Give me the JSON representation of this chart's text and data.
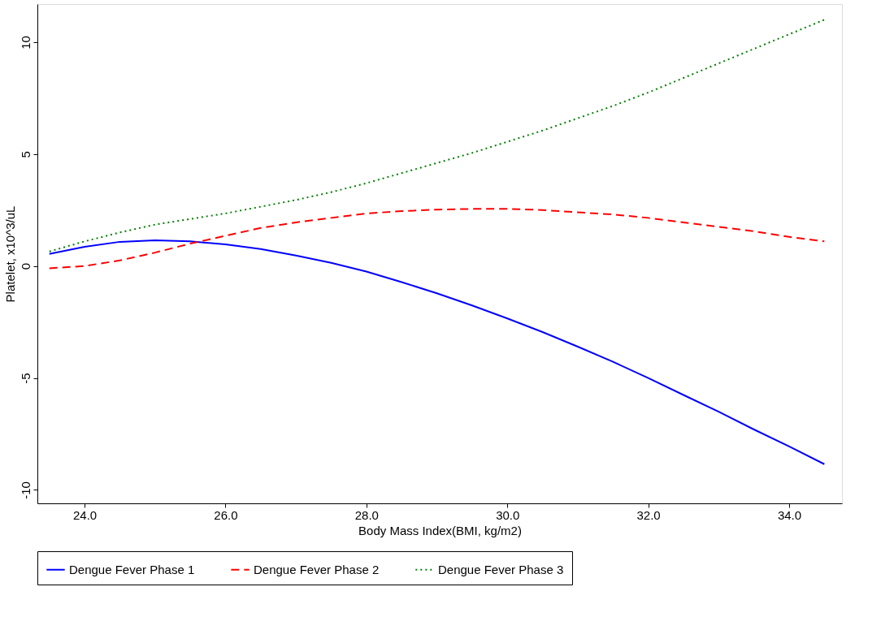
{
  "chart_data": {
    "type": "line",
    "xlabel": "Body Mass Index(BMI, kg/m2)",
    "ylabel": "Platelet, x10^3/uL",
    "x": [
      23.5,
      24,
      24.5,
      25,
      25.5,
      26,
      26.5,
      27,
      27.5,
      28,
      28.5,
      29,
      29.5,
      30,
      30.5,
      31,
      31.5,
      32,
      32.5,
      33,
      33.5,
      34,
      34.5
    ],
    "series": [
      {
        "name": "Dengue Fever Phase 1",
        "color": "#0000ff",
        "line_style": "solid",
        "values": [
          0.54,
          0.86,
          1.08,
          1.15,
          1.1,
          0.97,
          0.76,
          0.47,
          0.14,
          -0.25,
          -0.72,
          -1.22,
          -1.76,
          -2.34,
          -2.95,
          -3.6,
          -4.28,
          -5.0,
          -5.76,
          -6.51,
          -7.3,
          -8.06,
          -8.85
        ]
      },
      {
        "name": "Dengue Fever Phase 2",
        "color": "#ff0000",
        "line_style": "dashed",
        "values": [
          -0.1,
          0.0,
          0.25,
          0.6,
          1.0,
          1.35,
          1.7,
          1.95,
          2.15,
          2.35,
          2.45,
          2.52,
          2.55,
          2.55,
          2.5,
          2.4,
          2.3,
          2.15,
          1.95,
          1.75,
          1.55,
          1.3,
          1.1
        ]
      },
      {
        "name": "Dengue Fever Phase 3",
        "color": "#008000",
        "line_style": "dotted",
        "values": [
          0.65,
          1.1,
          1.5,
          1.85,
          2.1,
          2.35,
          2.65,
          2.95,
          3.3,
          3.7,
          4.15,
          4.6,
          5.05,
          5.55,
          6.05,
          6.6,
          7.15,
          7.75,
          8.4,
          9.05,
          9.7,
          10.35,
          11.0
        ]
      }
    ],
    "xlim": [
      23.33,
      34.75
    ],
    "ylim": [
      -10.6,
      11.7
    ],
    "xticks": [
      {
        "value": 24,
        "label": "24.0"
      },
      {
        "value": 26,
        "label": "26.0"
      },
      {
        "value": 28,
        "label": "28.0"
      },
      {
        "value": 30,
        "label": "30.0"
      },
      {
        "value": 32,
        "label": "32.0"
      },
      {
        "value": 34,
        "label": "34.0"
      }
    ],
    "yticks": [
      -10,
      -5,
      0,
      5,
      10
    ],
    "grid": false,
    "legend": "bottom",
    "marker": "none"
  }
}
